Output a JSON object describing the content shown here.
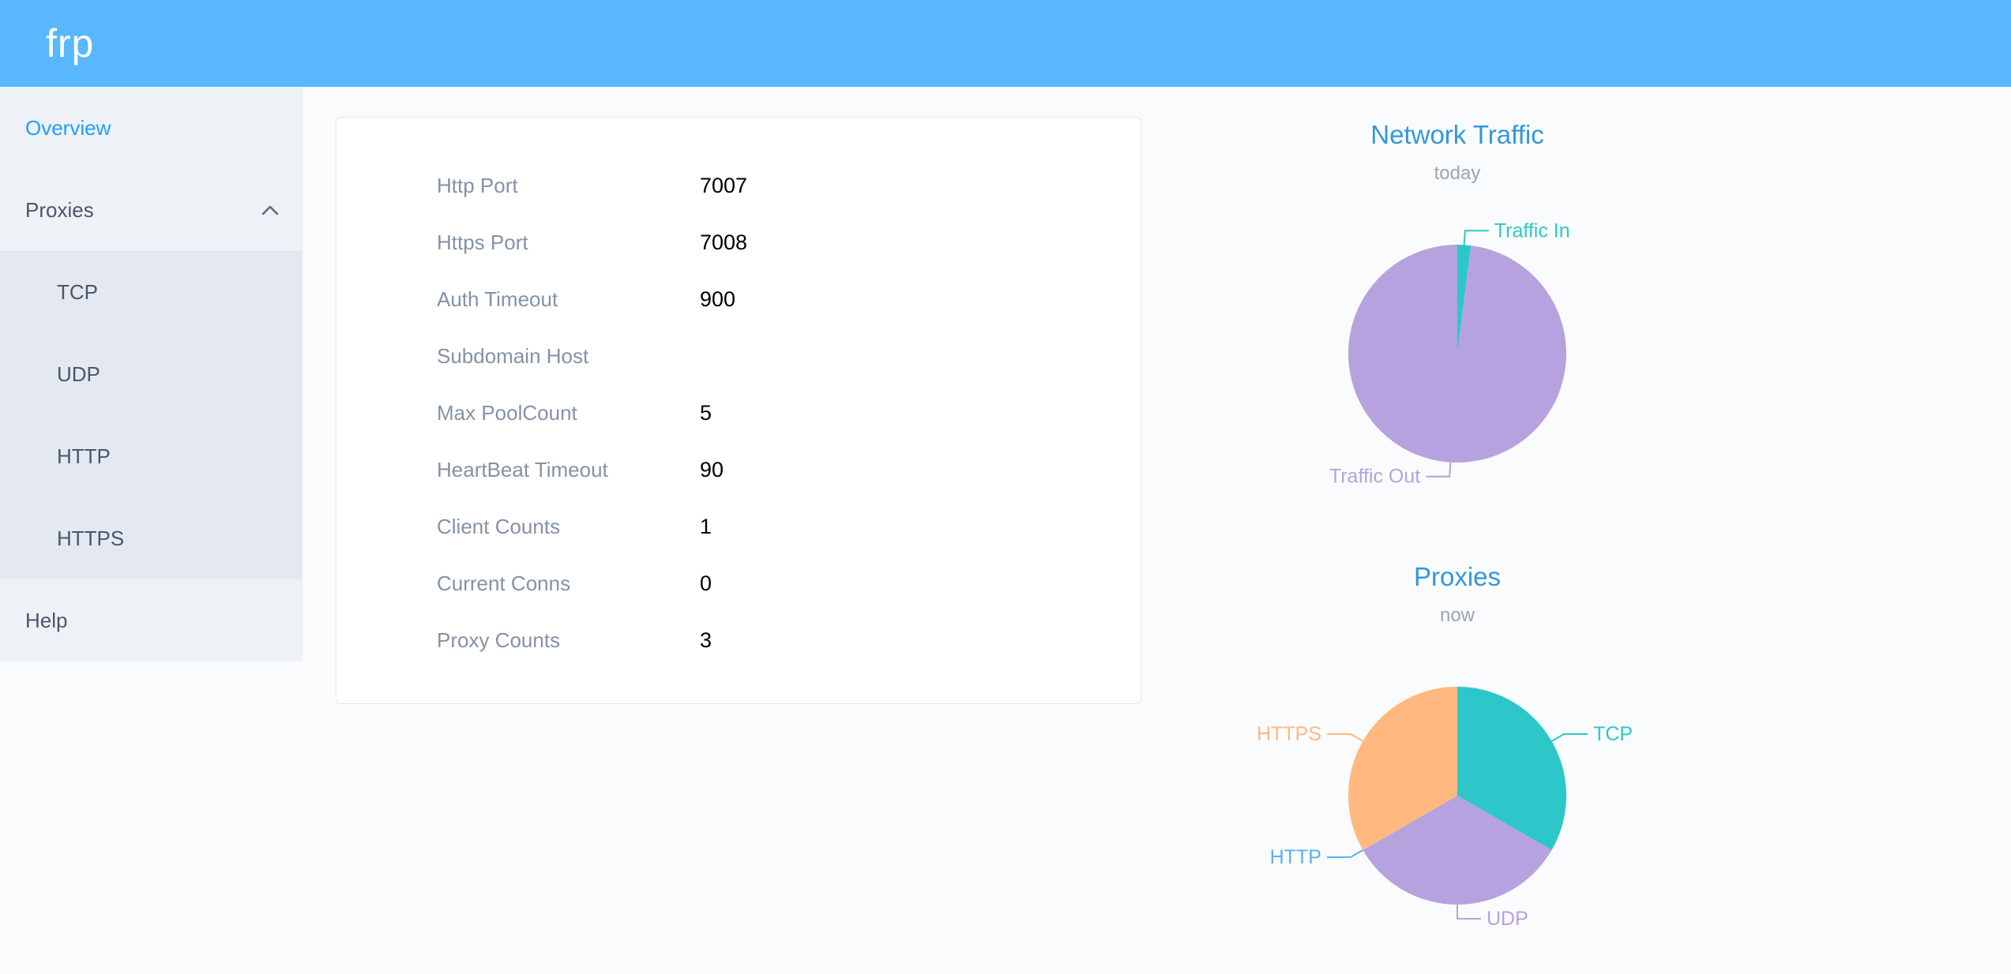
{
  "header": {
    "logo": "frp"
  },
  "colors": {
    "header_bg": "#58b7ff",
    "active_menu": "#20a0ff",
    "chart_title": "#3398db"
  },
  "sidebar": {
    "overview": "Overview",
    "proxies": "Proxies",
    "sub": [
      "TCP",
      "UDP",
      "HTTP",
      "HTTPS"
    ],
    "help": "Help"
  },
  "card": {
    "rows": [
      {
        "label": "Http Port",
        "value": "7007"
      },
      {
        "label": "Https Port",
        "value": "7008"
      },
      {
        "label": "Auth Timeout",
        "value": "900"
      },
      {
        "label": "Subdomain Host",
        "value": ""
      },
      {
        "label": "Max PoolCount",
        "value": "5"
      },
      {
        "label": "HeartBeat Timeout",
        "value": "90"
      },
      {
        "label": "Client Counts",
        "value": "1"
      },
      {
        "label": "Current Conns",
        "value": "0"
      },
      {
        "label": "Proxy Counts",
        "value": "3"
      }
    ]
  },
  "chart_data": [
    {
      "type": "pie",
      "title": "Network Traffic",
      "subtitle": "today",
      "legend_position": "none",
      "label_position": "outside",
      "series": [
        {
          "name": "Traffic In",
          "value": 2,
          "color": "#2ec7c9"
        },
        {
          "name": "Traffic Out",
          "value": 98,
          "color": "#b6a2de"
        }
      ]
    },
    {
      "type": "pie",
      "title": "Proxies",
      "subtitle": "now",
      "legend_position": "none",
      "label_position": "outside",
      "series": [
        {
          "name": "TCP",
          "value": 1,
          "color": "#2ec7c9"
        },
        {
          "name": "UDP",
          "value": 1,
          "color": "#b6a2de"
        },
        {
          "name": "HTTP",
          "value": 0,
          "color": "#5ab1ef"
        },
        {
          "name": "HTTPS",
          "value": 1,
          "color": "#ffb980"
        }
      ]
    }
  ]
}
